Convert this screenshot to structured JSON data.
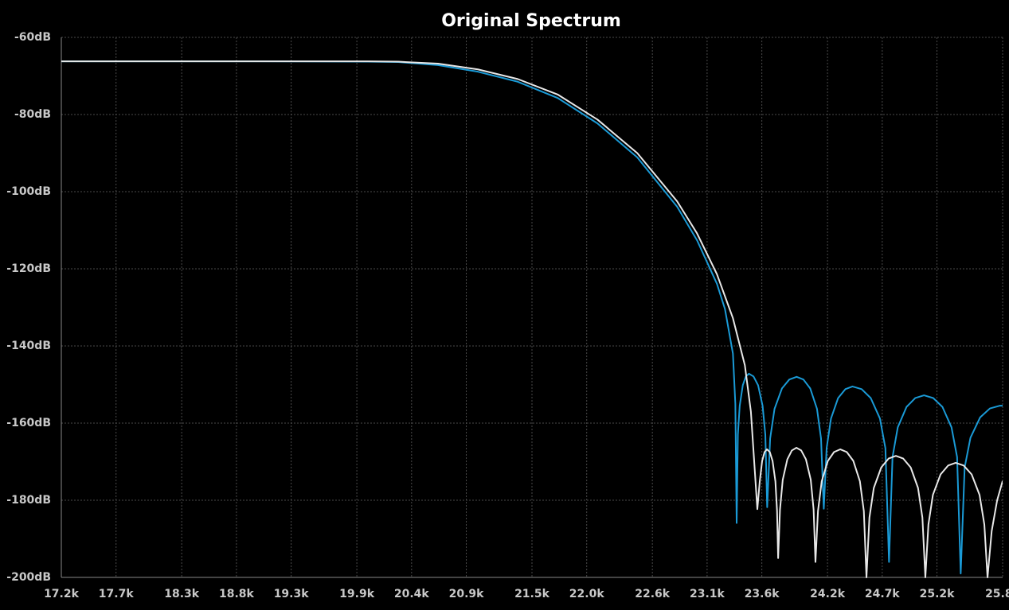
{
  "chart_data": {
    "type": "line",
    "title": "Original Spectrum",
    "xlim": [
      17200,
      25800
    ],
    "ylim": [
      -200,
      -60
    ],
    "xticks": [
      {
        "value": 17200,
        "label": "17.2k"
      },
      {
        "value": 17700,
        "label": "17.7k"
      },
      {
        "value": 18300,
        "label": "18.3k"
      },
      {
        "value": 18800,
        "label": "18.8k"
      },
      {
        "value": 19300,
        "label": "19.3k"
      },
      {
        "value": 19900,
        "label": "19.9k"
      },
      {
        "value": 20400,
        "label": "20.4k"
      },
      {
        "value": 20900,
        "label": "20.9k"
      },
      {
        "value": 21500,
        "label": "21.5k"
      },
      {
        "value": 22000,
        "label": "22.0k"
      },
      {
        "value": 22600,
        "label": "22.6k"
      },
      {
        "value": 23100,
        "label": "23.1k"
      },
      {
        "value": 23600,
        "label": "23.6k"
      },
      {
        "value": 24200,
        "label": "24.2k"
      },
      {
        "value": 24700,
        "label": "24.7k"
      },
      {
        "value": 25200,
        "label": "25.2k"
      },
      {
        "value": 25800,
        "label": "25.8k"
      }
    ],
    "yticks": [
      {
        "value": -60,
        "label": "-60dB"
      },
      {
        "value": -80,
        "label": "-80dB"
      },
      {
        "value": -100,
        "label": "-100dB"
      },
      {
        "value": -120,
        "label": "-120dB"
      },
      {
        "value": -140,
        "label": "-140dB"
      },
      {
        "value": -160,
        "label": "-160dB"
      },
      {
        "value": -180,
        "label": "-180dB"
      },
      {
        "value": -200,
        "label": "-200dB"
      }
    ],
    "grid": true,
    "series": [
      {
        "color": "#1a9ad6",
        "x": [
          17200,
          19000,
          20000,
          20279,
          20642,
          21006,
          21370,
          21734,
          22098,
          22462,
          22826,
          23008,
          23190,
          23263,
          23336,
          23358,
          23370,
          23381,
          23398,
          23426,
          23454,
          23482,
          23524,
          23566,
          23607,
          23632,
          23649,
          23676,
          23716,
          23784,
          23851,
          23918,
          23980,
          24042,
          24104,
          24141,
          24166,
          24192,
          24232,
          24297,
          24363,
          24428,
          24512,
          24595,
          24679,
          24729,
          24762,
          24794,
          24842,
          24922,
          25002,
          25082,
          25166,
          25250,
          25333,
          25384,
          25417,
          25453,
          25506,
          25595,
          25684,
          25773,
          25800
        ],
        "values": [
          -66.2,
          -66.2,
          -66.3,
          -66.4,
          -67.2,
          -68.9,
          -71.5,
          -75.7,
          -82.3,
          -91.1,
          -103.9,
          -112.6,
          -123.9,
          -130.4,
          -142,
          -155,
          -185.9,
          -163,
          -155.5,
          -150.2,
          -147.9,
          -147.2,
          -147.9,
          -150.2,
          -155.5,
          -163,
          -181.8,
          -164,
          -156.3,
          -151,
          -148.7,
          -148,
          -148.7,
          -151,
          -156.3,
          -164,
          -182.2,
          -166.5,
          -158.8,
          -153.5,
          -151.2,
          -150.5,
          -151.2,
          -153.5,
          -158.8,
          -166.5,
          -196,
          -168.8,
          -161.1,
          -155.8,
          -153.5,
          -152.8,
          -153.5,
          -155.8,
          -161.1,
          -168.8,
          -199,
          -171.5,
          -163.8,
          -158.5,
          -156.2,
          -155.5,
          -155.5
        ]
      },
      {
        "color": "#e8e8e8",
        "x": [
          17200,
          20000,
          20279,
          20642,
          21006,
          21370,
          21734,
          22098,
          22462,
          22826,
          23008,
          23190,
          23336,
          23445,
          23500,
          23559,
          23581,
          23603,
          23625,
          23647,
          23673,
          23698,
          23724,
          23739,
          23749,
          23766,
          23791,
          23833,
          23874,
          23916,
          23960,
          24003,
          24047,
          24073,
          24090,
          24113,
          24147,
          24203,
          24260,
          24316,
          24376,
          24436,
          24496,
          24532,
          24556,
          24583,
          24623,
          24691,
          24758,
          24825,
          24892,
          24960,
          25027,
          25067,
          25094,
          25122,
          25163,
          25233,
          25302,
          25371,
          25444,
          25517,
          25589,
          25633,
          25662,
          25700,
          25750,
          25800
        ],
        "values": [
          -66.2,
          -66.2,
          -66.3,
          -66.8,
          -68.3,
          -70.8,
          -74.8,
          -81.3,
          -90,
          -102.5,
          -110.8,
          -121.4,
          -132.8,
          -145,
          -157,
          -182.3,
          -175.1,
          -169.8,
          -167.5,
          -166.8,
          -167.5,
          -169.8,
          -175.1,
          -182.8,
          -195,
          -182.4,
          -174.7,
          -169.4,
          -167.1,
          -166.4,
          -167.1,
          -169.4,
          -174.7,
          -182.4,
          -196,
          -182.8,
          -175.1,
          -169.8,
          -167.5,
          -166.8,
          -167.5,
          -169.8,
          -175.1,
          -182.8,
          -200,
          -184.5,
          -176.8,
          -171.5,
          -169.2,
          -168.5,
          -169.2,
          -171.5,
          -176.8,
          -184.5,
          -200,
          -186.3,
          -178.6,
          -173.3,
          -171,
          -170.3,
          -171,
          -173.3,
          -178.6,
          -186.3,
          -200,
          -188,
          -180,
          -175
        ]
      }
    ]
  }
}
